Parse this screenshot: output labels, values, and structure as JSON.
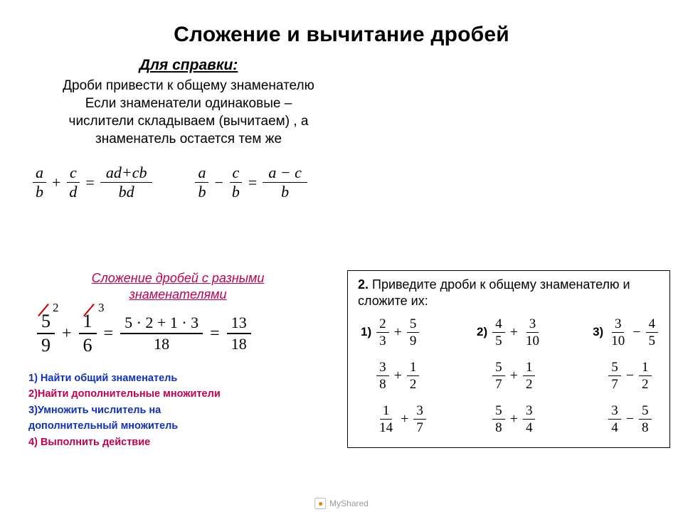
{
  "title": "Сложение и вычитание дробей",
  "reference": {
    "heading": "Для справки:",
    "line1": "Дроби привести к общему знаменателю",
    "line2": "Если знаменатели одинаковые –",
    "line3": "числители складываем (вычитаем) , а",
    "line4": "знаменатель остается тем же"
  },
  "formulas": {
    "add": {
      "t1n": "a",
      "t1d": "b",
      "op": "+",
      "t2n": "c",
      "t2d": "d",
      "rn": "ad+cb",
      "rd": "bd"
    },
    "sub": {
      "t1n": "a",
      "t1d": "b",
      "op": "−",
      "t2n": "c",
      "t2d": "b",
      "rn": "a − c",
      "rd": "b"
    },
    "eq": "="
  },
  "section2": {
    "title_l1": "Сложение дробей с разными",
    "title_l2": "знаменателями"
  },
  "example": {
    "f1": {
      "n": "5",
      "d": "9",
      "dm": "2"
    },
    "op1": "+",
    "f2": {
      "n": "1",
      "d": "6",
      "dm": "3"
    },
    "eq": "=",
    "mid": {
      "n": "5 · 2 + 1 · 3",
      "d": "18"
    },
    "res": {
      "n": "13",
      "d": "18"
    }
  },
  "steps": {
    "s1": "1) Найти общий знаменатель",
    "s2": "2)Найти дополнительные множители",
    "s3_l1": "3)Умножить числитель на",
    "s3_l2": "дополнительный множитель",
    "s4": "4) Выполнить действие"
  },
  "exercise": {
    "head_bold": "2.",
    "head_text": " Приведите дроби к общему знаменателю и сложите их:",
    "cols": [
      {
        "idx": "1)",
        "rows": [
          {
            "a": {
              "n": "2",
              "d": "3"
            },
            "op": "+",
            "b": {
              "n": "5",
              "d": "9"
            }
          },
          {
            "a": {
              "n": "3",
              "d": "8"
            },
            "op": "+",
            "b": {
              "n": "1",
              "d": "2"
            }
          },
          {
            "a": {
              "n": "1",
              "d": "14"
            },
            "op": "+",
            "b": {
              "n": "3",
              "d": "7"
            }
          }
        ]
      },
      {
        "idx": "2)",
        "rows": [
          {
            "a": {
              "n": "4",
              "d": "5"
            },
            "op": "+",
            "b": {
              "n": "3",
              "d": "10"
            }
          },
          {
            "a": {
              "n": "5",
              "d": "7"
            },
            "op": "+",
            "b": {
              "n": "1",
              "d": "2"
            }
          },
          {
            "a": {
              "n": "5",
              "d": "8"
            },
            "op": "+",
            "b": {
              "n": "3",
              "d": "4"
            }
          }
        ]
      },
      {
        "idx": "3)",
        "rows": [
          {
            "a": {
              "n": "3",
              "d": "10"
            },
            "op": "−",
            "b": {
              "n": "4",
              "d": "5"
            }
          },
          {
            "a": {
              "n": "5",
              "d": "7"
            },
            "op": "−",
            "b": {
              "n": "1",
              "d": "2"
            }
          },
          {
            "a": {
              "n": "3",
              "d": "4"
            },
            "op": "−",
            "b": {
              "n": "5",
              "d": "8"
            }
          }
        ]
      }
    ]
  },
  "watermark": "MyShared"
}
